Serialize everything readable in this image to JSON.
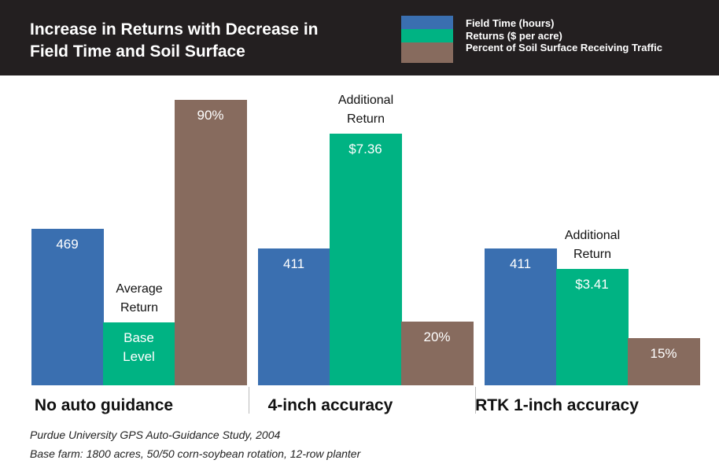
{
  "chart_data": {
    "type": "bar",
    "title": "Increase in Returns with Decrease in Field Time and Soil Surface",
    "categories": [
      "No auto guidance",
      "4-inch accuracy",
      "RTK 1-inch accuracy"
    ],
    "series": [
      {
        "name": "Field Time (hours)",
        "color": "#3a6fb0",
        "values": [
          469,
          411,
          411
        ]
      },
      {
        "name": "Returns ($ per acre)",
        "color": "#00b383",
        "values": [
          null,
          7.36,
          3.41
        ],
        "value_labels": [
          "Base Level",
          "$7.36",
          "$3.41"
        ],
        "annotations": [
          "Average Return",
          "Additional Return",
          "Additional Return"
        ]
      },
      {
        "name": "Percent of Soil Surface Receiving Traffic",
        "color": "#876b5e",
        "values": [
          90,
          20,
          15
        ],
        "value_labels": [
          "90%",
          "20%",
          "15%"
        ]
      }
    ],
    "notes": [
      "Purdue University GPS Auto-Guidance Study, 2004",
      "Base farm: 1800 acres, 50/50 corn-soybean rotation, 12-row planter"
    ]
  }
}
